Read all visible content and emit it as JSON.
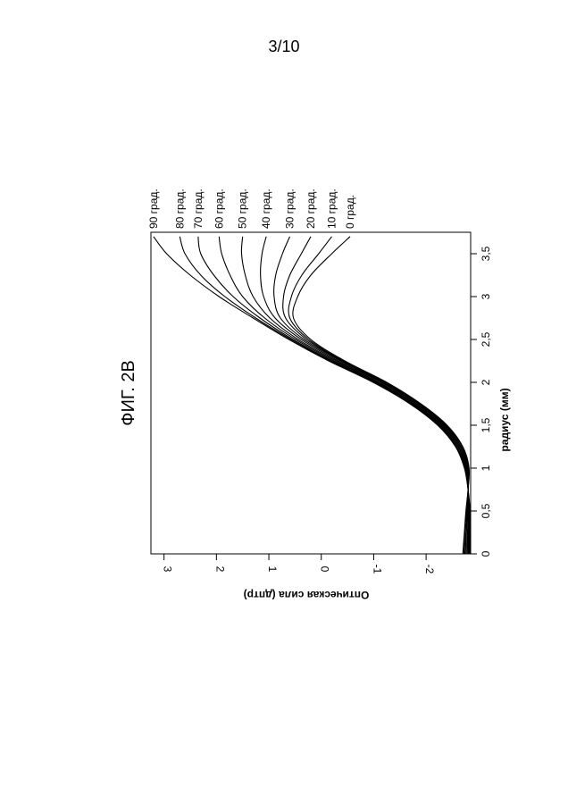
{
  "page": {
    "sheet_number": "3/10"
  },
  "chart_data": {
    "type": "line",
    "orientation": "rotated 90 degrees clockwise on the sheet",
    "title": "ФИГ. 2В",
    "xlabel": "радиус (мм)",
    "ylabel": "Оптическая сила (дптр)",
    "xlim": [
      0,
      3.75
    ],
    "ylim": [
      -2.85,
      3.25
    ],
    "x_ticks": [
      0,
      0.5,
      1,
      1.5,
      2,
      2.5,
      3,
      3.5
    ],
    "x_tick_labels": [
      "0",
      "0,5",
      "1",
      "1,5",
      "2",
      "2,5",
      "3",
      "3,5"
    ],
    "y_ticks": [
      -2,
      -1,
      0,
      1,
      2,
      3
    ],
    "y_tick_labels": [
      "-2",
      "-1",
      "0",
      "1",
      "2",
      "3"
    ],
    "grid": false,
    "x": [
      0,
      0.25,
      0.5,
      0.75,
      1,
      1.25,
      1.5,
      1.75,
      2,
      2.25,
      2.5,
      2.75,
      3,
      3.25,
      3.5,
      3.7
    ],
    "series": [
      {
        "name": "0 град.",
        "values": [
          -2.7,
          -2.73,
          -2.76,
          -2.8,
          -2.82,
          -2.7,
          -2.4,
          -1.9,
          -1.25,
          -0.45,
          0.2,
          0.53,
          0.45,
          0.2,
          -0.2,
          -0.55
        ]
      },
      {
        "name": "10 град.",
        "values": [
          -2.72,
          -2.74,
          -2.77,
          -2.8,
          -2.81,
          -2.69,
          -2.38,
          -1.88,
          -1.23,
          -0.42,
          0.24,
          0.6,
          0.57,
          0.37,
          0.05,
          -0.2
        ]
      },
      {
        "name": "20 град.",
        "values": [
          -2.74,
          -2.76,
          -2.78,
          -2.8,
          -2.8,
          -2.67,
          -2.36,
          -1.86,
          -1.2,
          -0.39,
          0.28,
          0.68,
          0.72,
          0.6,
          0.38,
          0.2
        ]
      },
      {
        "name": "30 град.",
        "values": [
          -2.76,
          -2.77,
          -2.79,
          -2.8,
          -2.79,
          -2.66,
          -2.34,
          -1.83,
          -1.17,
          -0.36,
          0.33,
          0.78,
          0.9,
          0.87,
          0.74,
          0.6
        ]
      },
      {
        "name": "40 град.",
        "values": [
          -2.78,
          -2.79,
          -2.8,
          -2.8,
          -2.78,
          -2.64,
          -2.32,
          -1.81,
          -1.14,
          -0.32,
          0.38,
          0.88,
          1.1,
          1.16,
          1.13,
          1.05
        ]
      },
      {
        "name": "50 град.",
        "values": [
          -2.8,
          -2.8,
          -2.8,
          -2.8,
          -2.77,
          -2.62,
          -2.3,
          -1.78,
          -1.1,
          -0.28,
          0.44,
          0.98,
          1.3,
          1.45,
          1.52,
          1.5
        ]
      },
      {
        "name": "60 град.",
        "values": [
          -2.81,
          -2.81,
          -2.81,
          -2.8,
          -2.76,
          -2.61,
          -2.28,
          -1.76,
          -1.07,
          -0.24,
          0.49,
          1.08,
          1.5,
          1.74,
          1.9,
          1.95
        ]
      },
      {
        "name": "70 град.",
        "values": [
          -2.82,
          -2.82,
          -2.82,
          -2.8,
          -2.75,
          -2.59,
          -2.26,
          -1.73,
          -1.04,
          -0.2,
          0.54,
          1.17,
          1.68,
          2.05,
          2.3,
          2.35
        ]
      },
      {
        "name": "80 град.",
        "values": [
          -2.83,
          -2.83,
          -2.83,
          -2.8,
          -2.74,
          -2.57,
          -2.24,
          -1.71,
          -1.01,
          -0.17,
          0.58,
          1.25,
          1.84,
          2.3,
          2.6,
          2.7
        ]
      },
      {
        "name": "90 град.",
        "values": [
          -2.84,
          -2.84,
          -2.84,
          -2.8,
          -2.73,
          -2.56,
          -2.22,
          -1.69,
          -0.99,
          -0.14,
          0.62,
          1.3,
          1.95,
          2.5,
          2.95,
          3.2
        ]
      }
    ]
  }
}
